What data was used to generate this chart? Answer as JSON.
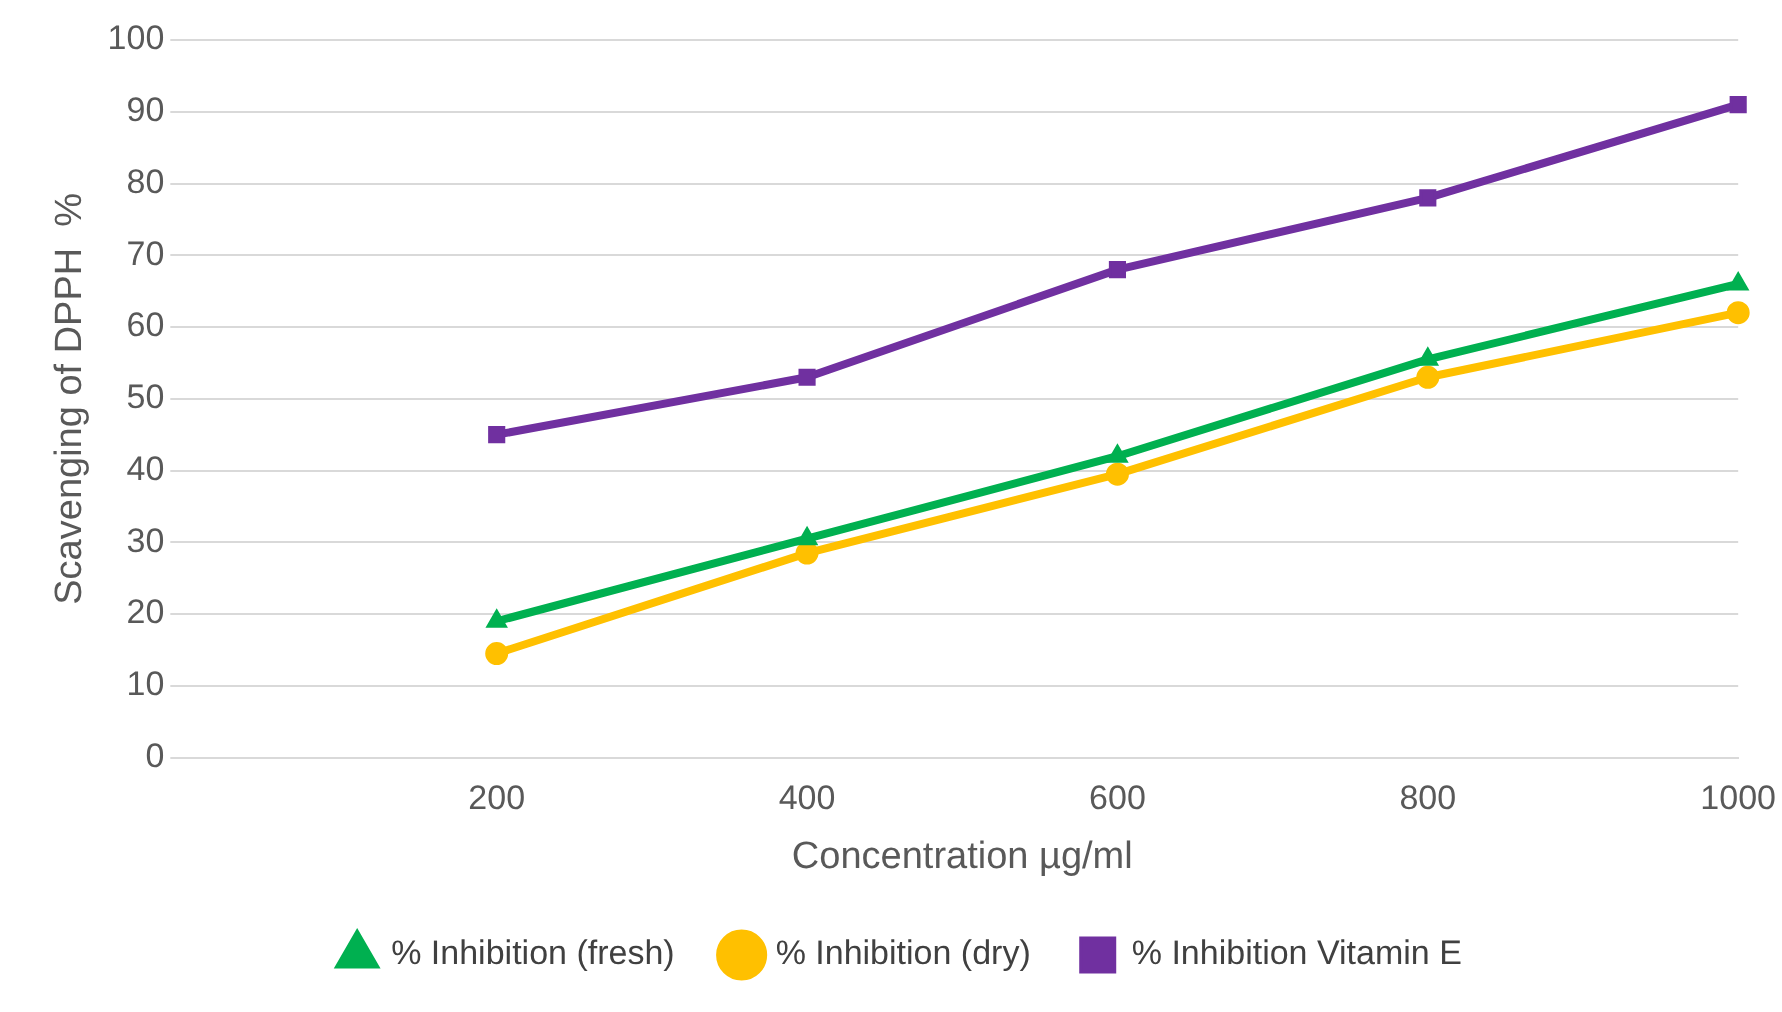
{
  "chart_data": {
    "type": "line",
    "xlabel": "Concentration µg/ml",
    "ylabel": "Scavenging of DPPH  %",
    "categories": [
      null,
      "200",
      "400",
      "600",
      "800",
      "1000"
    ],
    "series": [
      {
        "name": "% Inhibition (fresh)",
        "color": "#00b050",
        "marker": "triangle",
        "values": [
          null,
          19,
          30.5,
          42,
          55.5,
          66
        ]
      },
      {
        "name": "% Inhibition (dry)",
        "color": "#ffc000",
        "marker": "circle",
        "values": [
          null,
          14.5,
          28.5,
          39.5,
          53,
          62
        ]
      },
      {
        "name": "% Inhibition Vitamin E",
        "color": "#7030a0",
        "marker": "square",
        "values": [
          null,
          45,
          53,
          68,
          78,
          91
        ]
      }
    ],
    "ylim": [
      0,
      100
    ],
    "yticks": [
      0,
      10,
      20,
      30,
      40,
      50,
      60,
      70,
      80,
      90,
      100
    ],
    "grid": "y",
    "legend": "bottom",
    "line_style": "solid"
  }
}
